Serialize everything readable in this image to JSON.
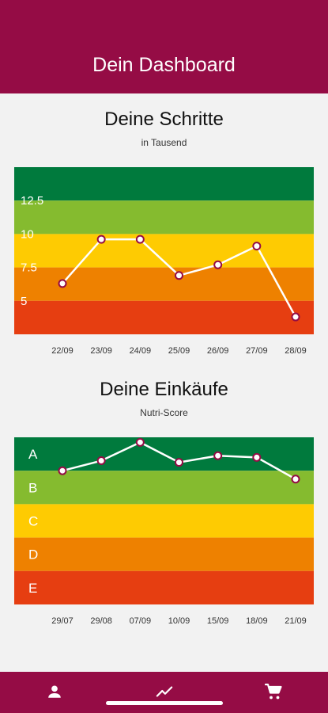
{
  "header": {
    "title": "Dein Dashboard"
  },
  "steps": {
    "title": "Deine Schritte",
    "subtitle": "in Tausend",
    "chart_data": {
      "type": "line",
      "title": "Deine Schritte",
      "subtitle": "in Tausend",
      "categories": [
        "22/09",
        "23/09",
        "24/09",
        "25/09",
        "26/09",
        "27/09",
        "28/09"
      ],
      "values": [
        6.3,
        9.6,
        9.6,
        6.9,
        7.7,
        9.1,
        3.8
      ],
      "ylim": [
        2.5,
        15
      ],
      "yticks": [
        "5",
        "7.5",
        "10",
        "12.5"
      ],
      "ytick_values": [
        5,
        7.5,
        10,
        12.5
      ],
      "bands": [
        {
          "from": 12.5,
          "to": 15,
          "color": "#007a3d"
        },
        {
          "from": 10,
          "to": 12.5,
          "color": "#85bb2f"
        },
        {
          "from": 7.5,
          "to": 10,
          "color": "#fecb02"
        },
        {
          "from": 5,
          "to": 7.5,
          "color": "#ee8100"
        },
        {
          "from": 2.5,
          "to": 5,
          "color": "#e63e11"
        }
      ],
      "line_color": "#ffffff",
      "marker_color": "#950c45"
    }
  },
  "purchases": {
    "title": "Deine Einkäufe",
    "subtitle": "Nutri-Score",
    "chart_data": {
      "type": "line",
      "title": "Deine Einkäufe",
      "subtitle": "Nutri-Score",
      "categories": [
        "29/07",
        "29/08",
        "07/09",
        "10/09",
        "15/09",
        "18/09",
        "21/09"
      ],
      "values": [
        4.0,
        4.3,
        4.85,
        4.25,
        4.45,
        4.4,
        3.75
      ],
      "ylim": [
        0,
        5
      ],
      "grades": [
        "A",
        "B",
        "C",
        "D",
        "E"
      ],
      "bands": [
        {
          "from": 4,
          "to": 5,
          "color": "#007a3d"
        },
        {
          "from": 3,
          "to": 4,
          "color": "#85bb2f"
        },
        {
          "from": 2,
          "to": 3,
          "color": "#fecb02"
        },
        {
          "from": 1,
          "to": 2,
          "color": "#ee8100"
        },
        {
          "from": 0,
          "to": 1,
          "color": "#e63e11"
        }
      ],
      "line_color": "#ffffff",
      "marker_color": "#950c45"
    }
  },
  "nav": {
    "items": [
      {
        "icon": "person-icon",
        "label": "Profil"
      },
      {
        "icon": "trend-icon",
        "label": "Dashboard"
      },
      {
        "icon": "cart-icon",
        "label": "Einkäufe"
      }
    ]
  }
}
